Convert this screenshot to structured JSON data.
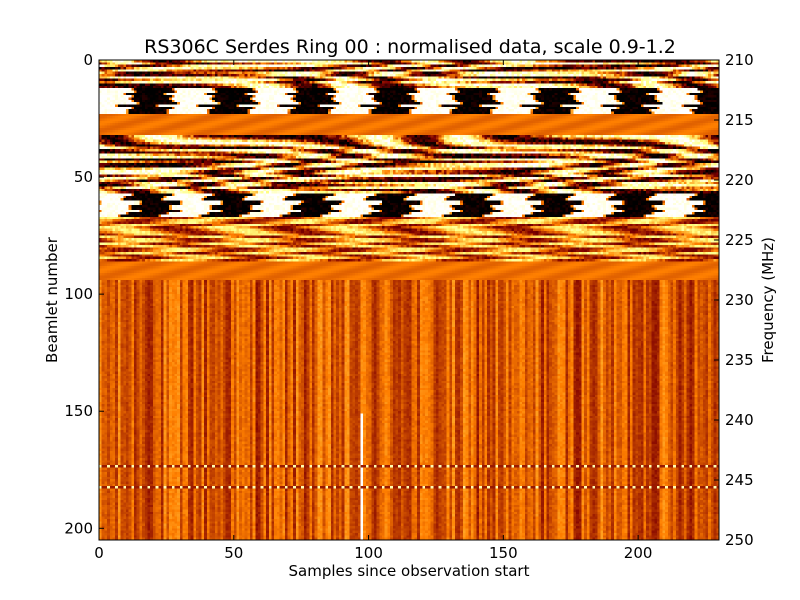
{
  "chart_data": {
    "type": "heatmap",
    "title": "RS306C Serdes Ring 00 : normalised data, scale 0.9-1.2",
    "xlabel": "Samples since observation start",
    "ylabel": "Beamlet number",
    "y2label": "Frequency (MHz)",
    "xlim": [
      0,
      230
    ],
    "ylim": [
      0,
      205
    ],
    "y2lim": [
      210,
      250
    ],
    "y_inverted": true,
    "color_scale": [
      0.9,
      1.2
    ],
    "colormap": "afmhot",
    "grid": false,
    "x_ticks": [
      0,
      50,
      100,
      150,
      200
    ],
    "y_ticks": [
      0,
      50,
      100,
      150,
      200
    ],
    "y2_ticks": [
      210,
      215,
      220,
      225,
      230,
      235,
      240,
      245,
      250
    ],
    "bands": [
      {
        "from": 0,
        "to": 12,
        "pattern": "high variance"
      },
      {
        "from": 12,
        "to": 23,
        "pattern": "alternating strong"
      },
      {
        "from": 23,
        "to": 32,
        "pattern": "flat"
      },
      {
        "from": 32,
        "to": 57,
        "pattern": "high variance"
      },
      {
        "from": 57,
        "to": 67,
        "pattern": "alternating saturated"
      },
      {
        "from": 67,
        "to": 86,
        "pattern": "moderate variance"
      },
      {
        "from": 86,
        "to": 94,
        "pattern": "flat"
      },
      {
        "from": 94,
        "to": 205,
        "pattern": "vertical striping"
      }
    ],
    "bright_column": 97
  }
}
